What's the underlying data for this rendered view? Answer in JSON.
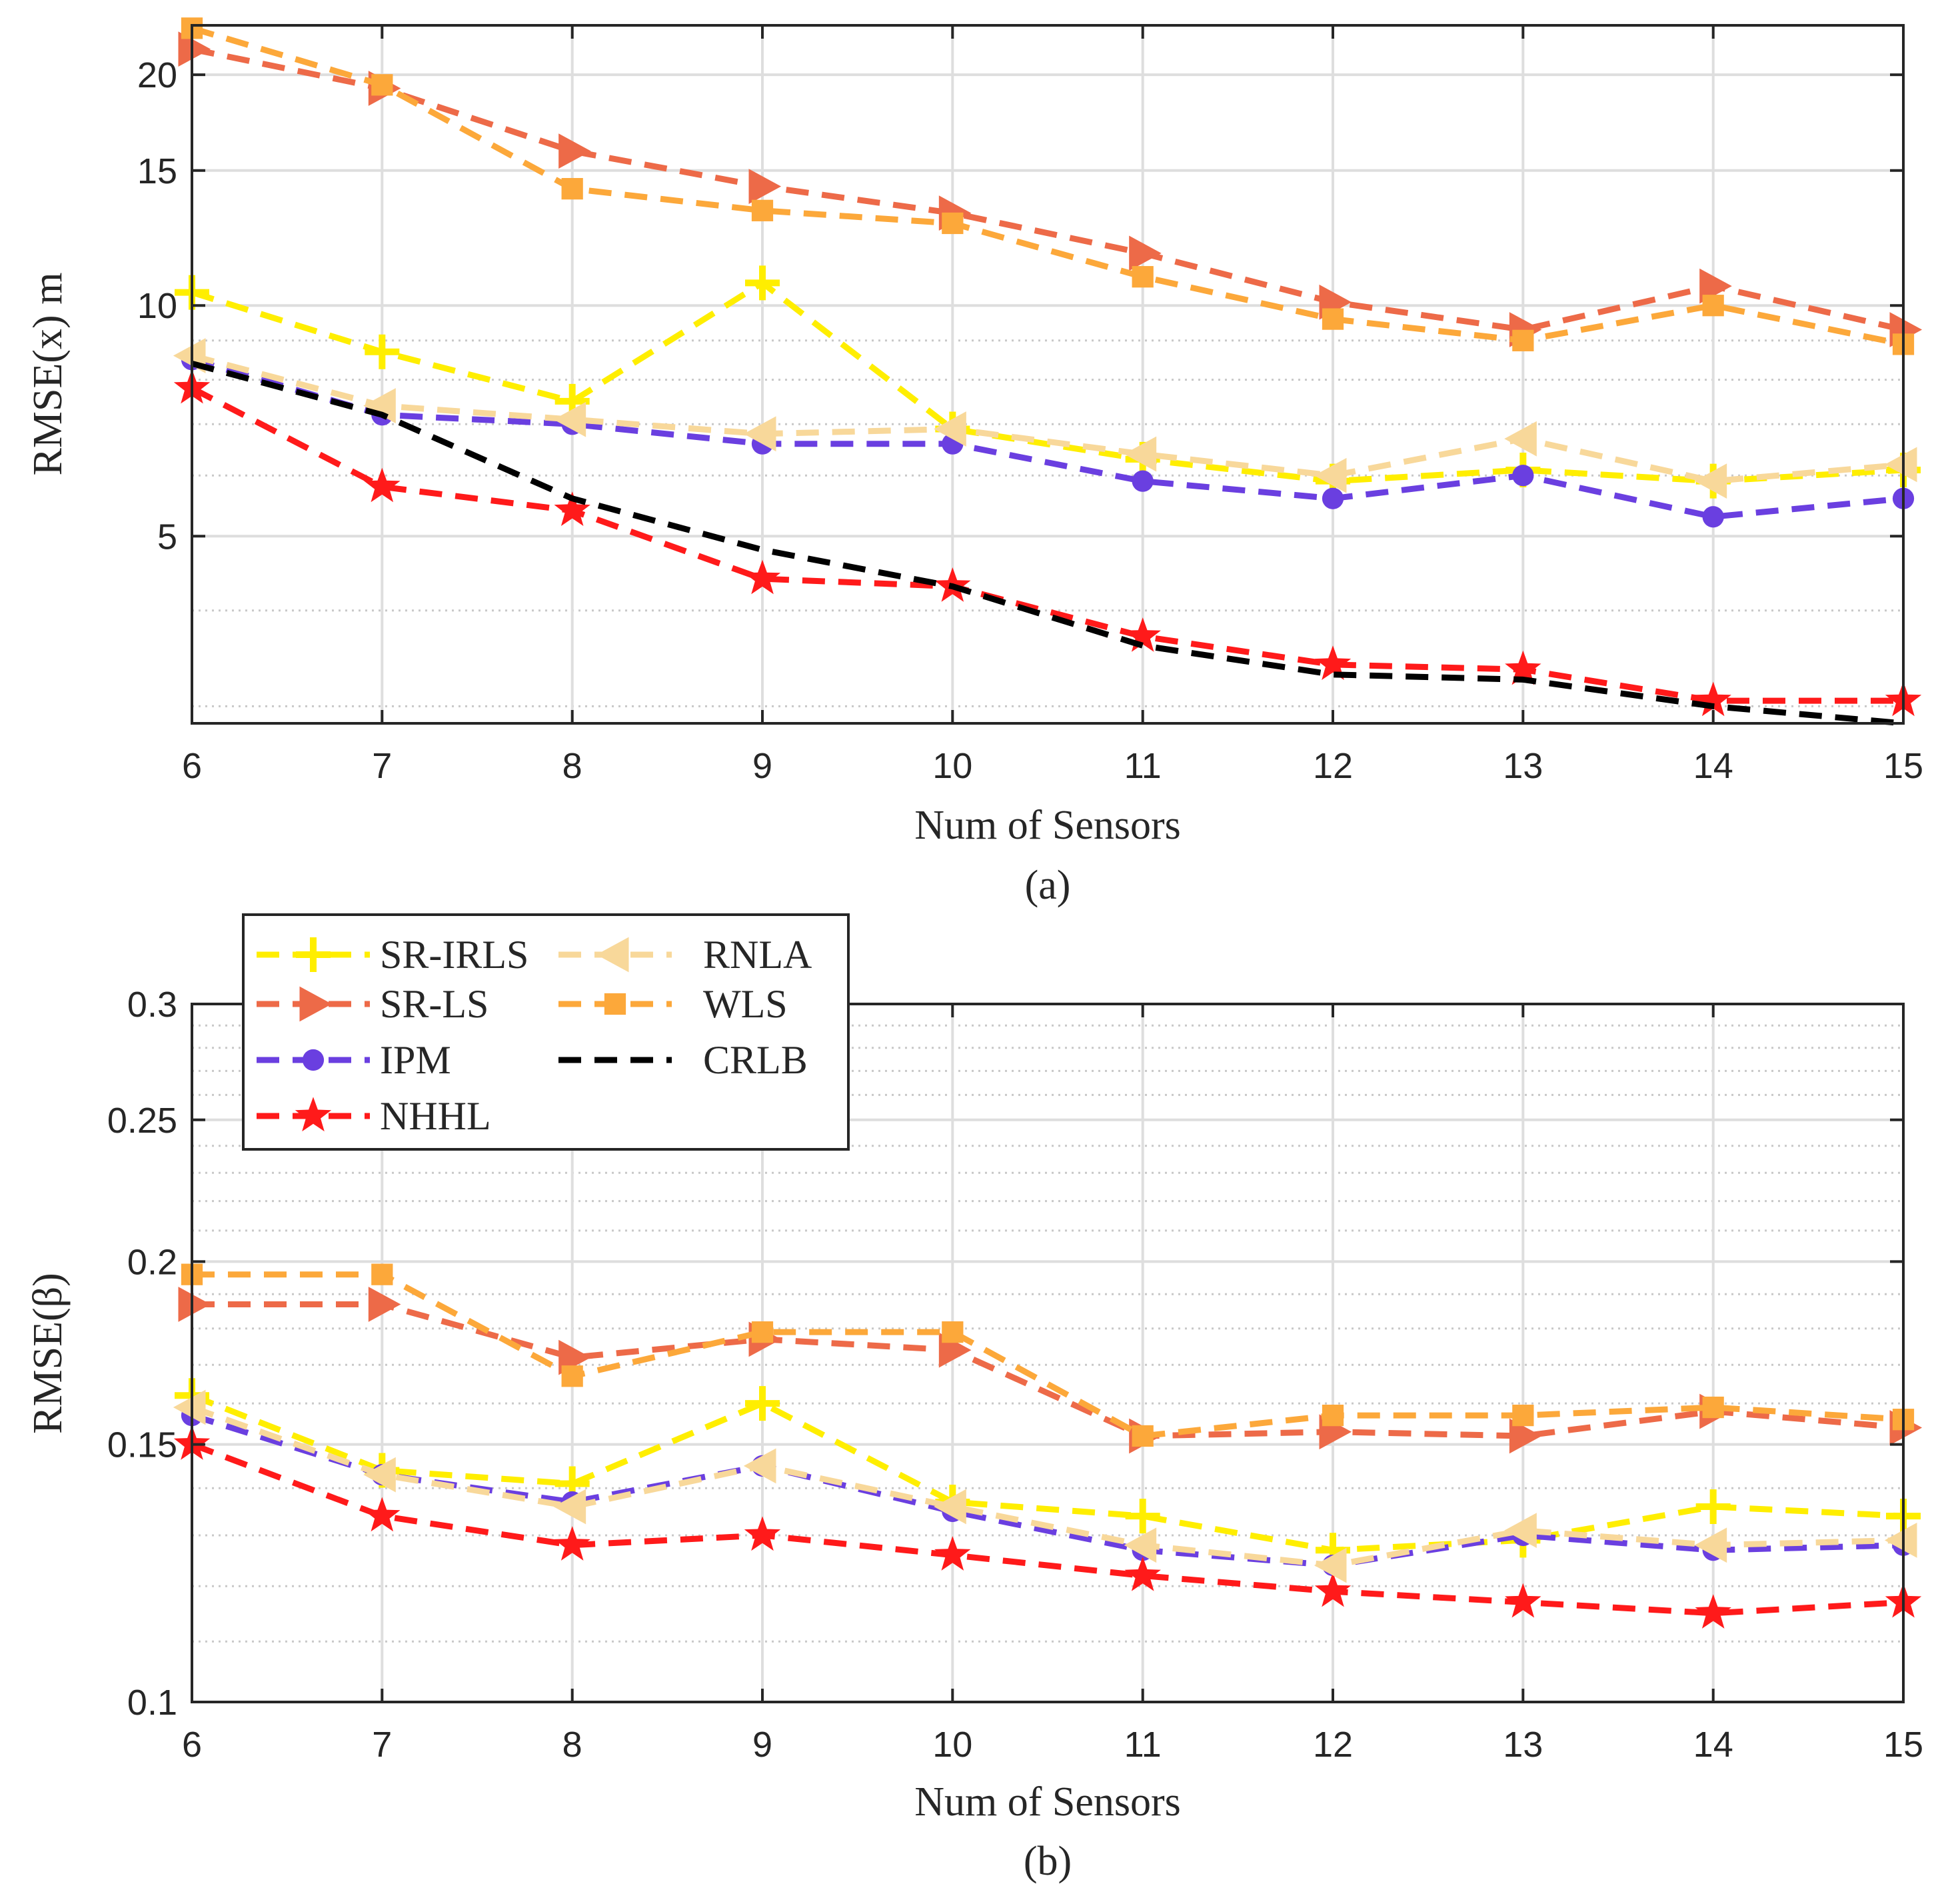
{
  "colors": {
    "SR-IRLS": "#ffee00",
    "SR-LS": "#ed6a48",
    "IPM": "#6a3fe0",
    "NHHL": "#ff1a1a",
    "RNLA": "#f8d89a",
    "WLS": "#fca83a",
    "CRLB": "#000000"
  },
  "legend": {
    "entries": [
      {
        "name": "SR-IRLS",
        "marker": "plus"
      },
      {
        "name": "SR-LS",
        "marker": "triangle-right"
      },
      {
        "name": "IPM",
        "marker": "circle"
      },
      {
        "name": "NHHL",
        "marker": "star"
      },
      {
        "name": "RNLA",
        "marker": "triangle-left"
      },
      {
        "name": "WLS",
        "marker": "square"
      },
      {
        "name": "CRLB",
        "marker": "none"
      }
    ],
    "placement": "top-left of panel (b), two columns"
  },
  "chart_data": [
    {
      "type": "line",
      "caption": "(a)",
      "title": "",
      "xlabel": "Num of Sensors",
      "ylabel": "RMSE(x) m",
      "yscale": "log",
      "xlim": [
        6,
        15
      ],
      "ylim": [
        2.85,
        23.2
      ],
      "x": [
        6,
        7,
        8,
        9,
        10,
        11,
        12,
        13,
        14,
        15
      ],
      "xticks": [
        "6",
        "7",
        "8",
        "9",
        "10",
        "11",
        "12",
        "13",
        "14",
        "15"
      ],
      "yticks": [
        5,
        10,
        15,
        20
      ],
      "ytick_labels": [
        "5",
        "10",
        "15",
        "20"
      ],
      "grid": true,
      "series": [
        {
          "name": "SR-IRLS",
          "values": [
            10.4,
            8.7,
            7.5,
            10.7,
            6.9,
            6.3,
            5.9,
            6.1,
            5.9,
            6.1
          ]
        },
        {
          "name": "SR-LS",
          "values": [
            21.6,
            19.2,
            15.9,
            14.3,
            13.2,
            11.7,
            10.1,
            9.3,
            10.6,
            9.3
          ]
        },
        {
          "name": "IPM",
          "values": [
            8.5,
            7.2,
            7.0,
            6.6,
            6.6,
            5.9,
            5.6,
            6.0,
            5.3,
            5.6
          ]
        },
        {
          "name": "NHHL",
          "values": [
            7.8,
            5.8,
            5.4,
            4.4,
            4.3,
            3.7,
            3.4,
            3.35,
            3.05,
            3.05
          ]
        },
        {
          "name": "RNLA",
          "values": [
            8.6,
            7.4,
            7.1,
            6.8,
            6.9,
            6.4,
            6.0,
            6.7,
            5.9,
            6.2
          ]
        },
        {
          "name": "WLS",
          "values": [
            23.0,
            19.4,
            14.2,
            13.3,
            12.8,
            10.9,
            9.6,
            9.0,
            10.0,
            8.9
          ]
        },
        {
          "name": "CRLB",
          "values": [
            8.4,
            7.2,
            5.6,
            4.8,
            4.3,
            3.6,
            3.3,
            3.25,
            3.0,
            2.85
          ]
        }
      ]
    },
    {
      "type": "line",
      "caption": "(b)",
      "title": "",
      "xlabel": "Num of Sensors",
      "ylabel": "RMSE(β)",
      "yscale": "log",
      "xlim": [
        6,
        15
      ],
      "ylim": [
        0.1,
        0.3
      ],
      "x": [
        6,
        7,
        8,
        9,
        10,
        11,
        12,
        13,
        14,
        15
      ],
      "xticks": [
        "6",
        "7",
        "8",
        "9",
        "10",
        "11",
        "12",
        "13",
        "14",
        "15"
      ],
      "yticks": [
        0.1,
        0.15,
        0.2,
        0.25,
        0.3
      ],
      "ytick_labels": [
        "0.1",
        "0.15",
        "0.2",
        "0.25",
        "0.3"
      ],
      "grid": true,
      "series": [
        {
          "name": "SR-IRLS",
          "values": [
            0.162,
            0.144,
            0.141,
            0.16,
            0.137,
            0.134,
            0.127,
            0.129,
            0.136,
            0.134
          ]
        },
        {
          "name": "SR-LS",
          "values": [
            0.187,
            0.187,
            0.172,
            0.177,
            0.174,
            0.152,
            0.153,
            0.152,
            0.158,
            0.154
          ]
        },
        {
          "name": "IPM",
          "values": [
            0.157,
            0.143,
            0.137,
            0.145,
            0.135,
            0.127,
            0.124,
            0.13,
            0.127,
            0.128
          ]
        },
        {
          "name": "NHHL",
          "values": [
            0.15,
            0.134,
            0.128,
            0.13,
            0.126,
            0.122,
            0.119,
            0.117,
            0.115,
            0.117
          ]
        },
        {
          "name": "RNLA",
          "values": [
            0.159,
            0.143,
            0.136,
            0.145,
            0.136,
            0.128,
            0.124,
            0.131,
            0.128,
            0.129
          ]
        },
        {
          "name": "WLS",
          "values": [
            0.196,
            0.196,
            0.167,
            0.179,
            0.179,
            0.152,
            0.157,
            0.157,
            0.159,
            0.156
          ]
        }
      ]
    }
  ]
}
